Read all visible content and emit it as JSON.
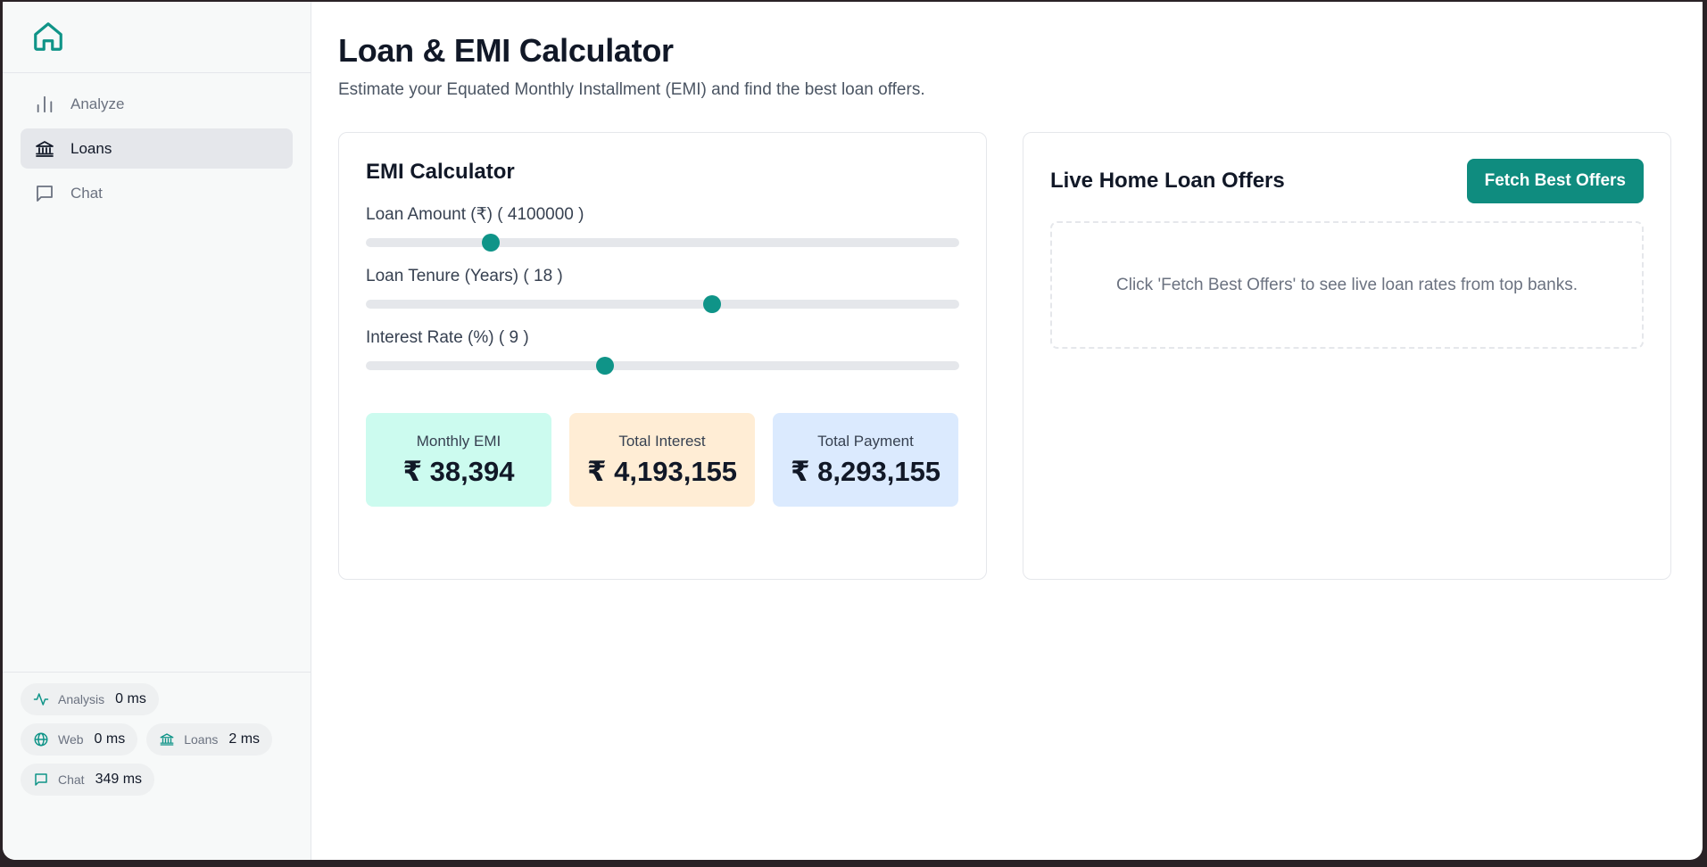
{
  "sidebar": {
    "brand_icon": "home-icon",
    "items": [
      {
        "label": "Analyze",
        "icon": "bar-chart-icon",
        "active": false
      },
      {
        "label": "Loans",
        "icon": "bank-icon",
        "active": true
      },
      {
        "label": "Chat",
        "icon": "chat-bubble-icon",
        "active": false
      }
    ],
    "stats": [
      {
        "label": "Analysis",
        "value": "0 ms",
        "icon": "activity-icon"
      },
      {
        "label": "Web",
        "value": "0 ms",
        "icon": "globe-icon"
      },
      {
        "label": "Loans",
        "value": "2 ms",
        "icon": "bank-icon"
      },
      {
        "label": "Chat",
        "value": "349 ms",
        "icon": "chat-bubble-icon"
      }
    ]
  },
  "main": {
    "title": "Loan & EMI Calculator",
    "subtitle": "Estimate your Equated Monthly Installment (EMI) and find the best loan offers."
  },
  "calculator": {
    "title": "EMI Calculator",
    "sliders": [
      {
        "label": "Loan Amount (₹) ( 4100000 )",
        "value_fraction": 0.21
      },
      {
        "label": "Loan Tenure (Years) ( 18 )",
        "value_fraction": 0.583
      },
      {
        "label": "Interest Rate (%) ( 9 )",
        "value_fraction": 0.403
      }
    ],
    "results": [
      {
        "label": "Monthly EMI",
        "value": "₹ 38,394"
      },
      {
        "label": "Total Interest",
        "value": "₹ 4,193,155"
      },
      {
        "label": "Total Payment",
        "value": "₹ 8,293,155"
      }
    ]
  },
  "offers": {
    "title": "Live Home Loan Offers",
    "button_label": "Fetch Best Offers",
    "empty_message": "Click 'Fetch Best Offers' to see live loan rates from top banks."
  },
  "colors": {
    "accent": "#0f9488",
    "button": "#0f8c7f",
    "emi_bg": "#ccfbef",
    "interest_bg": "#ffedd5",
    "payment_bg": "#dbeafe"
  }
}
